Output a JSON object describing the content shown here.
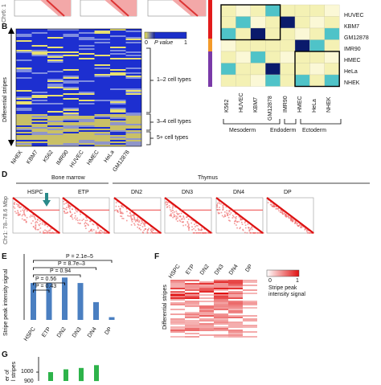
{
  "panels": {
    "A": {
      "ylabel_fragment": "Chr6: 1"
    },
    "B": {
      "letter": "B",
      "ylabel": "Differential stripes",
      "legend_title": "P value",
      "legend_min": "0",
      "legend_max": "1",
      "brackets": [
        "1–2 cell types",
        "3–4 cell types",
        "5+ cell types"
      ],
      "columns": [
        "NHEK",
        "KBM7",
        "K562",
        "IMR90",
        "HUVEC",
        "HMEC",
        "HeLa",
        "GM12878"
      ]
    },
    "C": {
      "row_labels": [
        "HUVEC",
        "KBM7",
        "GM12878",
        "IMR90",
        "HMEC",
        "HeLa",
        "NHEK"
      ],
      "col_labels": [
        "K562",
        "HUVEC",
        "KBM7",
        "GM12878",
        "IMR90",
        "HMEC",
        "HeLa",
        "NHEK"
      ],
      "groups": [
        "Mesoderm",
        "Endoderm",
        "Ectoderm"
      ],
      "colors": {
        "dark": "#0a1a6b",
        "teal": "#4fc3c8",
        "light": "#f4f1b4",
        "cream": "#fbf8d6"
      }
    },
    "D": {
      "letter": "D",
      "groups": [
        "Bone marrow",
        "Thymus"
      ],
      "cells": [
        "HSPC",
        "ETP",
        "DN2",
        "DN3",
        "DN4",
        "DP"
      ],
      "ylabel": "Chr1: 78–78.6 Mbp",
      "arrow_color": "#2a8a8a"
    },
    "E": {
      "letter": "E",
      "ylabel": "Stripe peak intensity signal",
      "comparisons": [
        "P = 2.1e–5",
        "P = 8.7e–3",
        "P = 0.94",
        "P = 0.56",
        "P = 0.43"
      ],
      "bar_color": "#4a7fc1"
    },
    "F": {
      "letter": "F",
      "ylabel": "Differential stripes",
      "columns": [
        "HSPC",
        "ETP",
        "DN2",
        "DN3",
        "DN4",
        "DP"
      ],
      "legend_min": "0",
      "legend_max": "1",
      "legend_title": "Stripe peak intensity signal"
    },
    "G": {
      "letter": "G",
      "ylabel_fragment": "er of",
      "ylabel_fragment2": "l stripes",
      "ticks": [
        "1000",
        "900"
      ],
      "bar_color": "#2db34a"
    }
  },
  "chart_data": [
    {
      "type": "bar",
      "categories": [
        "HSPC",
        "ETP",
        "DN2",
        "DN3",
        "DN4",
        "DP"
      ],
      "values": [
        0.27,
        0.27,
        0.31,
        0.27,
        0.13,
        0.02
      ],
      "ylabel": "Stripe peak intensity signal"
    },
    {
      "type": "bar",
      "values": [
        1000,
        1010,
        1015,
        1025
      ],
      "ticks": [
        1000,
        900
      ]
    }
  ]
}
